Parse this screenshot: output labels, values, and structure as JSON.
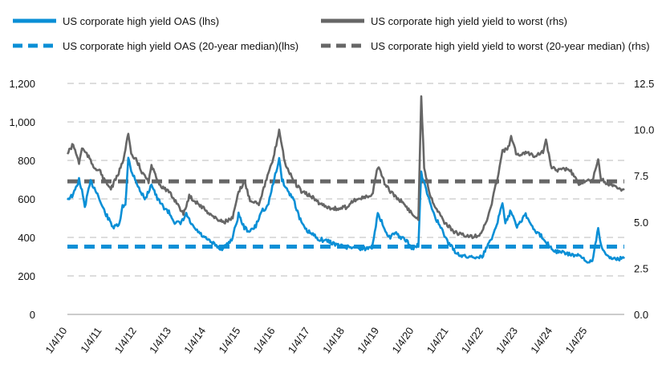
{
  "chart_data": {
    "type": "line",
    "title": "",
    "legend": {
      "placement": "top",
      "entries": [
        "US corporate high yield OAS (lhs)",
        "US corporate high yield yield to worst (rhs)",
        "US corporate high yield OAS (20-year median)(lhs)",
        "US corporate high yield yield to worst (20-year median) (rhs)"
      ]
    },
    "grid": true,
    "y_left": {
      "range": [
        0,
        1200
      ],
      "ticks": [
        "0",
        "200",
        "400",
        "600",
        "800",
        "1,000",
        "1,200"
      ]
    },
    "y_right": {
      "range": [
        0,
        12.5
      ],
      "ticks": [
        "0.0",
        "2.5",
        "5.0",
        "7.5",
        "10.0",
        "12.5"
      ]
    },
    "x_ticks": [
      "1/4/10",
      "1/4/11",
      "1/4/12",
      "1/4/13",
      "1/4/14",
      "1/4/15",
      "1/4/16",
      "1/4/17",
      "1/4/18",
      "1/4/19",
      "1/4/20",
      "1/4/21",
      "1/4/22",
      "1/4/23",
      "1/4/24",
      "1/4/25"
    ],
    "x_range": [
      "2010-01",
      "2026-01"
    ],
    "series": [
      {
        "name": "US corporate high yield OAS (lhs)",
        "axis": "left",
        "color": "#0a8fd6",
        "style": "solid",
        "points": [
          [
            "2010-01",
            600
          ],
          [
            "2010-03",
            620
          ],
          [
            "2010-05",
            700
          ],
          [
            "2010-06",
            640
          ],
          [
            "2010-07",
            560
          ],
          [
            "2010-09",
            690
          ],
          [
            "2010-11",
            640
          ],
          [
            "2011-01",
            560
          ],
          [
            "2011-03",
            500
          ],
          [
            "2011-05",
            450
          ],
          [
            "2011-07",
            470
          ],
          [
            "2011-08",
            560
          ],
          [
            "2011-09",
            570
          ],
          [
            "2011-10",
            820
          ],
          [
            "2011-11",
            740
          ],
          [
            "2011-12",
            720
          ],
          [
            "2012-02",
            640
          ],
          [
            "2012-04",
            600
          ],
          [
            "2012-06",
            680
          ],
          [
            "2012-08",
            600
          ],
          [
            "2012-10",
            560
          ],
          [
            "2012-12",
            530
          ],
          [
            "2013-02",
            480
          ],
          [
            "2013-04",
            470
          ],
          [
            "2013-06",
            520
          ],
          [
            "2013-08",
            460
          ],
          [
            "2013-10",
            430
          ],
          [
            "2013-12",
            400
          ],
          [
            "2014-02",
            380
          ],
          [
            "2014-04",
            360
          ],
          [
            "2014-06",
            340
          ],
          [
            "2014-08",
            360
          ],
          [
            "2014-10",
            400
          ],
          [
            "2014-12",
            520
          ],
          [
            "2015-02",
            450
          ],
          [
            "2015-04",
            430
          ],
          [
            "2015-06",
            460
          ],
          [
            "2015-08",
            540
          ],
          [
            "2015-10",
            560
          ],
          [
            "2015-12",
            680
          ],
          [
            "2016-02",
            810
          ],
          [
            "2016-03",
            700
          ],
          [
            "2016-05",
            640
          ],
          [
            "2016-07",
            600
          ],
          [
            "2016-09",
            500
          ],
          [
            "2016-11",
            440
          ],
          [
            "2017-01",
            420
          ],
          [
            "2017-04",
            390
          ],
          [
            "2017-07",
            380
          ],
          [
            "2017-10",
            360
          ],
          [
            "2018-01",
            350
          ],
          [
            "2018-04",
            350
          ],
          [
            "2018-07",
            340
          ],
          [
            "2018-10",
            350
          ],
          [
            "2018-12",
            520
          ],
          [
            "2019-02",
            460
          ],
          [
            "2019-04",
            400
          ],
          [
            "2019-06",
            420
          ],
          [
            "2019-08",
            400
          ],
          [
            "2019-10",
            380
          ],
          [
            "2019-12",
            340
          ],
          [
            "2020-02",
            360
          ],
          [
            "2020-03",
            740
          ],
          [
            "2020-04",
            680
          ],
          [
            "2020-06",
            580
          ],
          [
            "2020-08",
            500
          ],
          [
            "2020-10",
            440
          ],
          [
            "2020-12",
            380
          ],
          [
            "2021-03",
            320
          ],
          [
            "2021-06",
            300
          ],
          [
            "2021-09",
            300
          ],
          [
            "2021-12",
            300
          ],
          [
            "2022-02",
            360
          ],
          [
            "2022-04",
            420
          ],
          [
            "2022-06",
            520
          ],
          [
            "2022-07",
            580
          ],
          [
            "2022-08",
            480
          ],
          [
            "2022-10",
            540
          ],
          [
            "2022-12",
            460
          ],
          [
            "2023-03",
            520
          ],
          [
            "2023-05",
            460
          ],
          [
            "2023-07",
            420
          ],
          [
            "2023-09",
            400
          ],
          [
            "2023-11",
            360
          ],
          [
            "2024-01",
            330
          ],
          [
            "2024-04",
            320
          ],
          [
            "2024-07",
            310
          ],
          [
            "2024-10",
            300
          ],
          [
            "2024-12",
            270
          ],
          [
            "2025-02",
            280
          ],
          [
            "2025-04",
            450
          ],
          [
            "2025-05",
            360
          ],
          [
            "2025-07",
            300
          ],
          [
            "2025-10",
            290
          ],
          [
            "2026-01",
            290
          ]
        ]
      },
      {
        "name": "US corporate high yield yield to worst (rhs)",
        "axis": "right",
        "color": "#666666",
        "style": "solid",
        "points": [
          [
            "2010-01",
            8.7
          ],
          [
            "2010-03",
            9.2
          ],
          [
            "2010-05",
            8.2
          ],
          [
            "2010-06",
            9.0
          ],
          [
            "2010-08",
            8.6
          ],
          [
            "2010-10",
            8.0
          ],
          [
            "2010-12",
            7.8
          ],
          [
            "2011-02",
            7.2
          ],
          [
            "2011-04",
            6.8
          ],
          [
            "2011-06",
            7.4
          ],
          [
            "2011-08",
            8.2
          ],
          [
            "2011-10",
            9.8
          ],
          [
            "2011-11",
            8.6
          ],
          [
            "2012-01",
            8.3
          ],
          [
            "2012-03",
            7.6
          ],
          [
            "2012-05",
            7.2
          ],
          [
            "2012-06",
            8.0
          ],
          [
            "2012-09",
            7.0
          ],
          [
            "2012-12",
            6.6
          ],
          [
            "2013-03",
            6.0
          ],
          [
            "2013-05",
            5.4
          ],
          [
            "2013-07",
            6.4
          ],
          [
            "2013-10",
            6.0
          ],
          [
            "2014-01",
            5.6
          ],
          [
            "2014-04",
            5.2
          ],
          [
            "2014-07",
            5.0
          ],
          [
            "2014-10",
            5.2
          ],
          [
            "2014-12",
            6.6
          ],
          [
            "2015-02",
            7.2
          ],
          [
            "2015-04",
            6.2
          ],
          [
            "2015-07",
            6.0
          ],
          [
            "2015-09",
            7.0
          ],
          [
            "2015-12",
            8.4
          ],
          [
            "2016-02",
            10.0
          ],
          [
            "2016-04",
            8.2
          ],
          [
            "2016-07",
            7.2
          ],
          [
            "2016-10",
            6.6
          ],
          [
            "2017-01",
            6.4
          ],
          [
            "2017-04",
            6.0
          ],
          [
            "2017-07",
            5.8
          ],
          [
            "2017-10",
            5.7
          ],
          [
            "2018-01",
            5.8
          ],
          [
            "2018-04",
            6.2
          ],
          [
            "2018-07",
            6.3
          ],
          [
            "2018-10",
            6.4
          ],
          [
            "2018-12",
            8.0
          ],
          [
            "2019-03",
            6.9
          ],
          [
            "2019-06",
            6.4
          ],
          [
            "2019-09",
            6.0
          ],
          [
            "2019-12",
            5.4
          ],
          [
            "2020-02",
            5.2
          ],
          [
            "2020-03",
            11.8
          ],
          [
            "2020-04",
            8.0
          ],
          [
            "2020-06",
            6.5
          ],
          [
            "2020-08",
            5.8
          ],
          [
            "2020-11",
            5.0
          ],
          [
            "2021-02",
            4.5
          ],
          [
            "2021-05",
            4.3
          ],
          [
            "2021-08",
            4.2
          ],
          [
            "2021-11",
            4.3
          ],
          [
            "2022-01",
            4.8
          ],
          [
            "2022-03",
            5.8
          ],
          [
            "2022-05",
            7.2
          ],
          [
            "2022-07",
            8.8
          ],
          [
            "2022-09",
            9.0
          ],
          [
            "2022-10",
            9.6
          ],
          [
            "2022-12",
            8.6
          ],
          [
            "2023-03",
            8.8
          ],
          [
            "2023-06",
            8.6
          ],
          [
            "2023-09",
            8.8
          ],
          [
            "2023-10",
            9.4
          ],
          [
            "2023-12",
            7.9
          ],
          [
            "2024-03",
            7.8
          ],
          [
            "2024-06",
            7.9
          ],
          [
            "2024-09",
            7.1
          ],
          [
            "2024-12",
            7.2
          ],
          [
            "2025-02",
            7.2
          ],
          [
            "2025-04",
            8.4
          ],
          [
            "2025-05",
            7.3
          ],
          [
            "2025-08",
            7.0
          ],
          [
            "2025-11",
            6.8
          ],
          [
            "2026-01",
            6.8
          ]
        ]
      },
      {
        "name": "US corporate high yield OAS (20-year median)(lhs)",
        "axis": "left",
        "color": "#0a8fd6",
        "style": "dashed",
        "value": 352
      },
      {
        "name": "US corporate high yield yield to worst (20-year median) (rhs)",
        "axis": "right",
        "color": "#666666",
        "style": "dashed",
        "value": 7.2
      }
    ]
  }
}
